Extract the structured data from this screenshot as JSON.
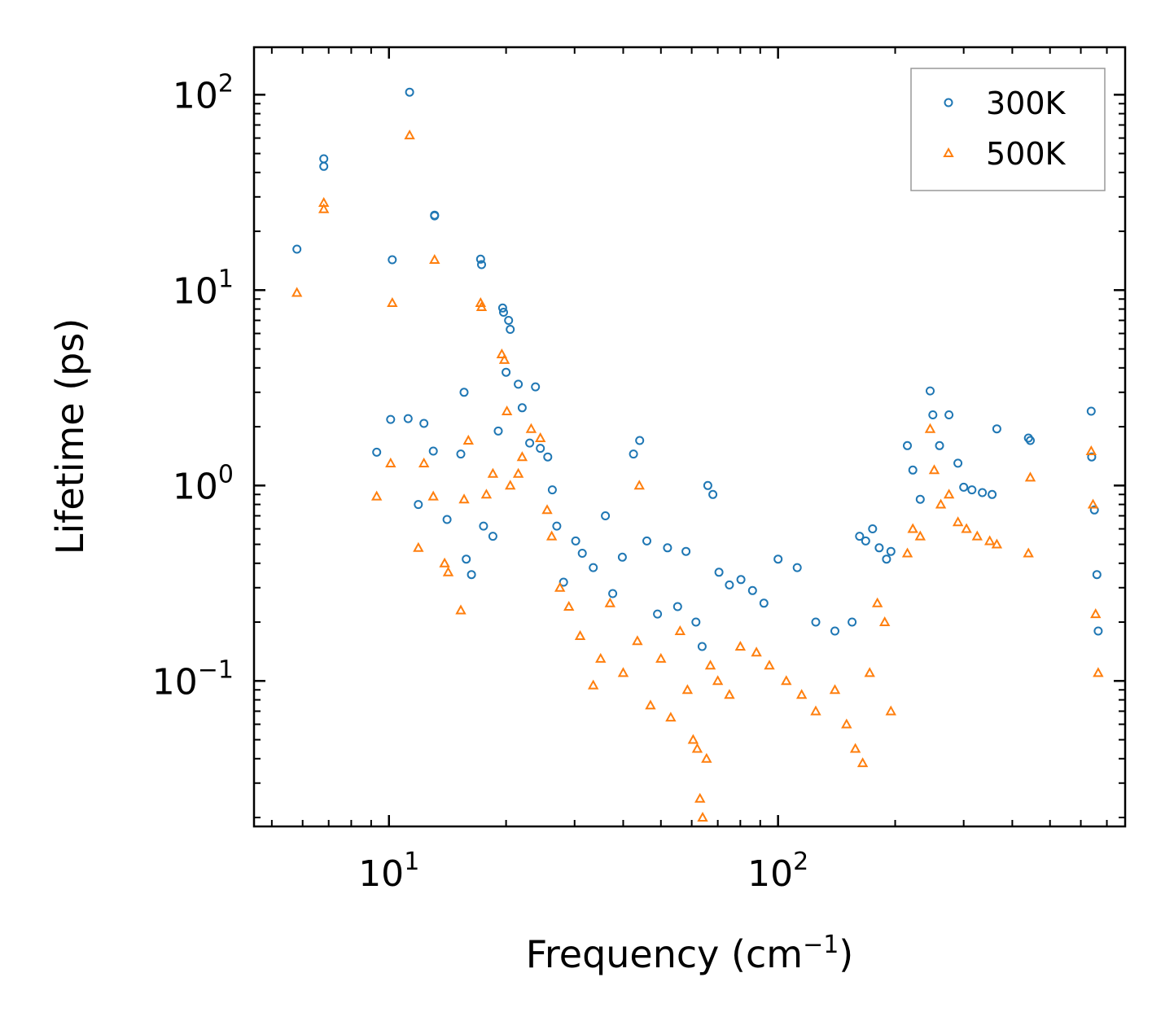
{
  "chart_data": {
    "type": "scatter",
    "title": "",
    "xlabel": "Frequency (cm",
    "xlabel_superscript": "−1",
    "xlabel_suffix": ")",
    "ylabel": "Lifetime (ps)",
    "xscale": "log",
    "yscale": "log",
    "xlim": [
      4.5,
      780
    ],
    "ylim": [
      0.018,
      175
    ],
    "x_ticks": [
      {
        "value": 10,
        "base": "10",
        "exp": "1"
      },
      {
        "value": 100,
        "base": "10",
        "exp": "2"
      }
    ],
    "y_ticks": [
      {
        "value": 0.1,
        "base": "10",
        "exp": "−1"
      },
      {
        "value": 1,
        "base": "10",
        "exp": "0"
      },
      {
        "value": 10,
        "base": "10",
        "exp": "1"
      },
      {
        "value": 100,
        "base": "10",
        "exp": "2"
      }
    ],
    "legend_position": "top-right",
    "series": [
      {
        "name": "300K",
        "marker": "circle",
        "color": "#1f77b4",
        "x": [
          5.8,
          6.8,
          6.8,
          10.2,
          11.3,
          13.1,
          13.1,
          9.3,
          10.1,
          11.2,
          11.9,
          12.3,
          13.0,
          14.1,
          15.3,
          15.6,
          15.8,
          16.3,
          17.2,
          17.3,
          17.5,
          18.5,
          19.1,
          19.6,
          19.7,
          20.0,
          20.3,
          20.5,
          21.5,
          22.0,
          23.0,
          23.8,
          24.5,
          25.6,
          26.3,
          27.0,
          28.1,
          30.2,
          31.4,
          33.5,
          36.0,
          37.6,
          39.8,
          42.5,
          44.1,
          46.0,
          49.0,
          52.0,
          55.2,
          58.0,
          61.5,
          63.8,
          66.0,
          68.0,
          70.5,
          75.0,
          80.3,
          86.0,
          92.0,
          100.0,
          112.0,
          125.0,
          140.0,
          155.0,
          162.0,
          168.0,
          175.0,
          182.0,
          190.0,
          195.0,
          215.0,
          222.0,
          232.0,
          246.0,
          250.0,
          260.0,
          275.0,
          290.0,
          300.0,
          315.0,
          335.0,
          355.0,
          365.0,
          440.0,
          445.0,
          638.0,
          640.0,
          650.0,
          660.0,
          665.0
        ],
        "y": [
          16.2,
          47.0,
          43.0,
          14.3,
          103.0,
          24.2,
          24.0,
          1.48,
          2.18,
          2.2,
          0.8,
          2.08,
          1.5,
          0.67,
          1.45,
          3.0,
          0.42,
          0.35,
          14.4,
          13.5,
          0.62,
          0.55,
          1.9,
          8.1,
          7.7,
          3.8,
          7.0,
          6.3,
          3.3,
          2.5,
          1.65,
          3.2,
          1.55,
          1.4,
          0.95,
          0.62,
          0.32,
          0.52,
          0.45,
          0.38,
          0.7,
          0.28,
          0.43,
          1.45,
          1.7,
          0.52,
          0.22,
          0.48,
          0.24,
          0.46,
          0.2,
          0.15,
          1.0,
          0.9,
          0.36,
          0.31,
          0.33,
          0.29,
          0.25,
          0.42,
          0.38,
          0.2,
          0.18,
          0.2,
          0.55,
          0.52,
          0.6,
          0.48,
          0.42,
          0.46,
          1.6,
          1.2,
          0.85,
          3.05,
          2.3,
          1.6,
          2.3,
          1.3,
          0.98,
          0.95,
          0.92,
          0.9,
          1.95,
          1.75,
          1.7,
          2.4,
          1.4,
          0.75,
          0.35,
          0.18
        ]
      },
      {
        "name": "500K",
        "marker": "triangle",
        "color": "#ff7f0e",
        "x": [
          5.8,
          6.8,
          6.8,
          10.2,
          11.3,
          13.1,
          9.3,
          10.1,
          11.9,
          12.3,
          13.0,
          13.9,
          14.2,
          15.3,
          15.6,
          16.0,
          17.2,
          17.3,
          17.8,
          18.5,
          19.5,
          19.8,
          20.1,
          20.5,
          21.5,
          22.0,
          23.2,
          24.5,
          25.5,
          26.2,
          27.5,
          29.0,
          31.0,
          33.5,
          35.0,
          37.0,
          40.0,
          43.5,
          44.0,
          47.0,
          50.0,
          53.0,
          56.0,
          58.5,
          60.5,
          62.0,
          63.0,
          64.0,
          65.5,
          67.0,
          70.0,
          75.0,
          80.0,
          88.0,
          95.0,
          105.0,
          115.0,
          125.0,
          140.0,
          150.0,
          158.0,
          165.0,
          172.0,
          180.0,
          188.0,
          195.0,
          215.0,
          222.0,
          232.0,
          246.0,
          252.0,
          262.0,
          275.0,
          290.0,
          305.0,
          325.0,
          350.0,
          365.0,
          440.0,
          445.0,
          638.0,
          645.0,
          655.0,
          665.0
        ],
        "y": [
          9.7,
          28.0,
          26.0,
          8.6,
          62.0,
          14.3,
          0.88,
          1.3,
          0.48,
          1.3,
          0.88,
          0.4,
          0.36,
          0.23,
          0.85,
          1.7,
          8.6,
          8.2,
          0.9,
          1.15,
          4.7,
          4.4,
          2.4,
          1.0,
          1.15,
          1.4,
          1.95,
          1.75,
          0.75,
          0.55,
          0.3,
          0.24,
          0.17,
          0.095,
          0.13,
          0.25,
          0.11,
          0.16,
          1.0,
          0.075,
          0.13,
          0.065,
          0.18,
          0.09,
          0.05,
          0.045,
          0.025,
          0.02,
          0.04,
          0.12,
          0.1,
          0.085,
          0.15,
          0.14,
          0.12,
          0.1,
          0.085,
          0.07,
          0.09,
          0.06,
          0.045,
          0.038,
          0.11,
          0.25,
          0.2,
          0.07,
          0.45,
          0.6,
          0.55,
          1.95,
          1.2,
          0.8,
          0.9,
          0.65,
          0.6,
          0.55,
          0.52,
          0.5,
          0.45,
          1.1,
          1.5,
          0.8,
          0.22,
          0.11
        ]
      }
    ]
  }
}
